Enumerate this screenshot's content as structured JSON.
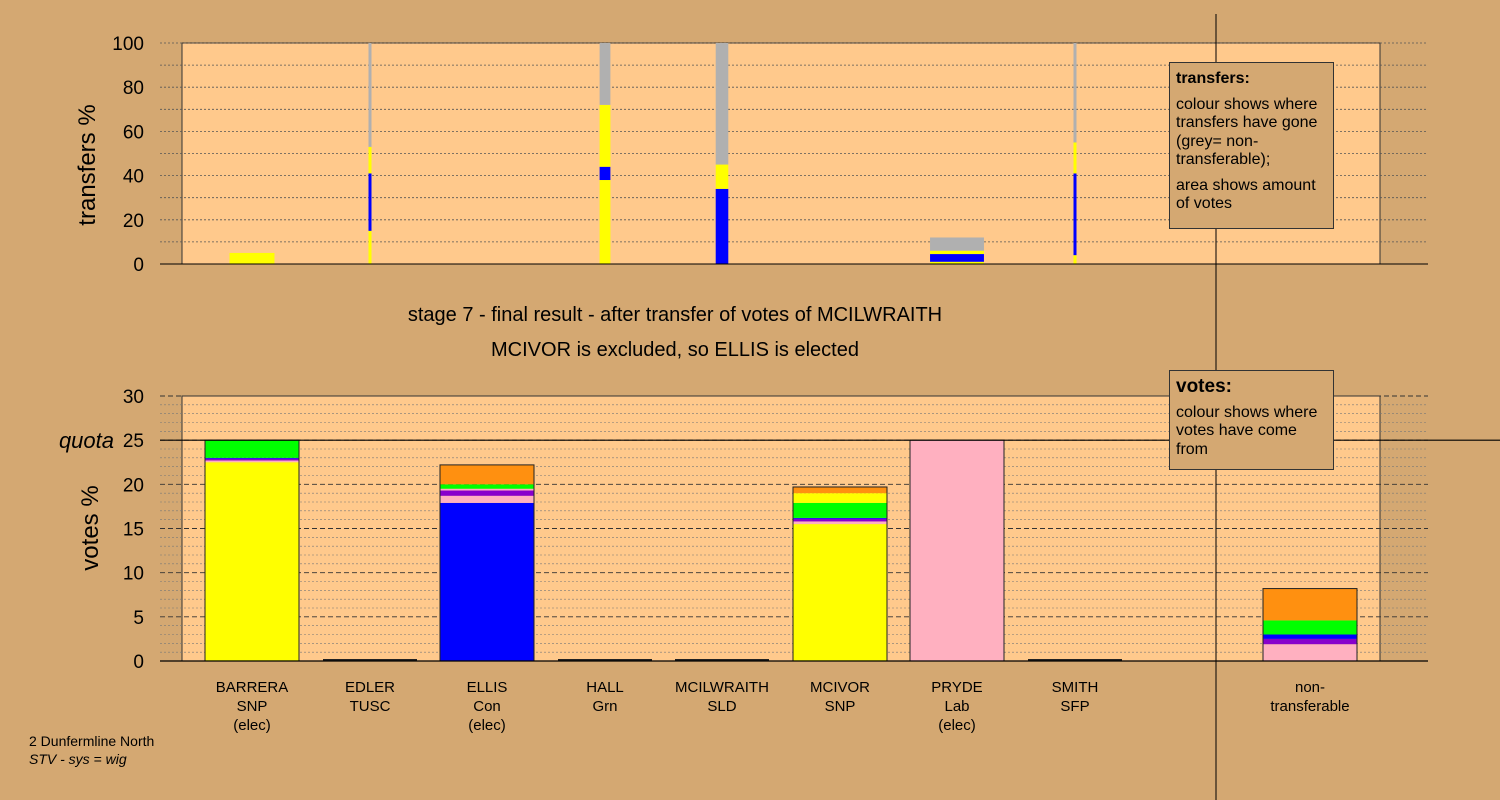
{
  "stage_title": "stage 7 - final result - after transfer of votes of MCILWRAITH",
  "stage_subtitle": "MCIVOR is excluded, so ELLIS is elected",
  "transfers_legend": {
    "title": "transfers:",
    "line1": "colour shows where transfers have gone (grey= non-transferable);",
    "line2": "area shows amount of votes"
  },
  "votes_legend": {
    "title": "votes:",
    "line1": "colour shows where votes have come from"
  },
  "footer": {
    "ward": "2 Dunfermline North",
    "system": "STV - sys = wig"
  },
  "colors": {
    "background": "#d4a872",
    "plot_bg": "#ffc98c",
    "SNP": "#ffff00",
    "Con": "#0000ff",
    "Lab": "#ffb0c0",
    "Grn": "#00ff00",
    "SLD": "#ff9010",
    "TUSC": "#8800cc",
    "SFP": "#a000a0",
    "nontransferable": "#b0b0b0"
  },
  "candidates": [
    {
      "name": "BARRERA",
      "party": "SNP",
      "status": "(elec)"
    },
    {
      "name": "EDLER",
      "party": "TUSC",
      "status": ""
    },
    {
      "name": "ELLIS",
      "party": "Con",
      "status": "(elec)"
    },
    {
      "name": "HALL",
      "party": "Grn",
      "status": ""
    },
    {
      "name": "MCILWRAITH",
      "party": "SLD",
      "status": ""
    },
    {
      "name": "MCIVOR",
      "party": "SNP",
      "status": ""
    },
    {
      "name": "PRYDE",
      "party": "Lab",
      "status": "(elec)"
    },
    {
      "name": "SMITH",
      "party": "SFP",
      "status": ""
    }
  ],
  "nontransferable_label": {
    "line1": "non-",
    "line2": "transferable"
  },
  "chart_data": [
    {
      "type": "bar",
      "id": "transfers",
      "ylabel": "transfers %",
      "ylim": [
        0,
        100
      ],
      "yticks": [
        0,
        20,
        40,
        60,
        80,
        100
      ],
      "bars": [
        {
          "candidate": "BARRERA",
          "width_pct": 5,
          "segments": [
            {
              "party": "SNP",
              "value": 5
            }
          ]
        },
        {
          "candidate": "EDLER",
          "width_pct": 0.3,
          "segments": [
            {
              "party": "SNP",
              "value": 15
            },
            {
              "party": "Con",
              "value": 26
            },
            {
              "party": "SNP",
              "value": 12
            },
            {
              "party": "nontransferable",
              "value": 47
            }
          ]
        },
        {
          "candidate": "HALL",
          "width_pct": 1.2,
          "segments": [
            {
              "party": "SNP",
              "value": 38
            },
            {
              "party": "Con",
              "value": 6
            },
            {
              "party": "SNP",
              "value": 28
            },
            {
              "party": "nontransferable",
              "value": 28
            }
          ]
        },
        {
          "candidate": "MCILWRAITH",
          "width_pct": 1.4,
          "segments": [
            {
              "party": "Con",
              "value": 34
            },
            {
              "party": "SNP",
              "value": 11
            },
            {
              "party": "nontransferable",
              "value": 55
            }
          ]
        },
        {
          "candidate": "PRYDE",
          "width_pct": 6,
          "segments": [
            {
              "party": "SNP",
              "value": 1
            },
            {
              "party": "Con",
              "value": 3.5
            },
            {
              "party": "SNP",
              "value": 1.5
            },
            {
              "party": "nontransferable",
              "value": 6
            }
          ]
        },
        {
          "candidate": "SMITH",
          "width_pct": 0.3,
          "segments": [
            {
              "party": "SNP",
              "value": 4
            },
            {
              "party": "Con",
              "value": 37
            },
            {
              "party": "SNP",
              "value": 14
            },
            {
              "party": "nontransferable",
              "value": 45
            }
          ]
        }
      ]
    },
    {
      "type": "bar",
      "id": "votes",
      "ylabel": "votes %",
      "ylim": [
        0,
        30
      ],
      "yticks": [
        0,
        5,
        10,
        15,
        20,
        25,
        30
      ],
      "quota": 25,
      "quota_label": "quota",
      "bars": [
        {
          "candidate": "BARRERA",
          "segments": [
            {
              "party": "SNP",
              "value": 22.5
            },
            {
              "party": "Lab",
              "value": 0.2
            },
            {
              "party": "TUSC",
              "value": 0.2
            },
            {
              "party": "Con",
              "value": 0.1
            },
            {
              "party": "Grn",
              "value": 2.0
            }
          ]
        },
        {
          "candidate": "EDLER",
          "segments": []
        },
        {
          "candidate": "ELLIS",
          "segments": [
            {
              "party": "Con",
              "value": 17.9
            },
            {
              "party": "Lab",
              "value": 0.8
            },
            {
              "party": "TUSC",
              "value": 0.6
            },
            {
              "party": "Lab",
              "value": 0.2
            },
            {
              "party": "Grn",
              "value": 0.5
            },
            {
              "party": "SLD",
              "value": 2.2
            }
          ]
        },
        {
          "candidate": "HALL",
          "segments": []
        },
        {
          "candidate": "MCILWRAITH",
          "segments": []
        },
        {
          "candidate": "MCIVOR",
          "segments": [
            {
              "party": "SNP",
              "value": 15.5
            },
            {
              "party": "Lab",
              "value": 0.3
            },
            {
              "party": "TUSC",
              "value": 0.3
            },
            {
              "party": "Con",
              "value": 0.1
            },
            {
              "party": "Grn",
              "value": 1.7
            },
            {
              "party": "SNP",
              "value": 1.1
            },
            {
              "party": "SLD",
              "value": 0.7
            }
          ]
        },
        {
          "candidate": "PRYDE",
          "segments": [
            {
              "party": "Lab",
              "value": 25.0
            }
          ]
        },
        {
          "candidate": "SMITH",
          "segments": []
        },
        {
          "candidate": "nontransferable",
          "segments": [
            {
              "party": "Lab",
              "value": 1.9
            },
            {
              "party": "TUSC",
              "value": 0.6
            },
            {
              "party": "Con",
              "value": 0.5
            },
            {
              "party": "Grn",
              "value": 1.6
            },
            {
              "party": "SLD",
              "value": 3.6
            }
          ]
        }
      ]
    }
  ]
}
